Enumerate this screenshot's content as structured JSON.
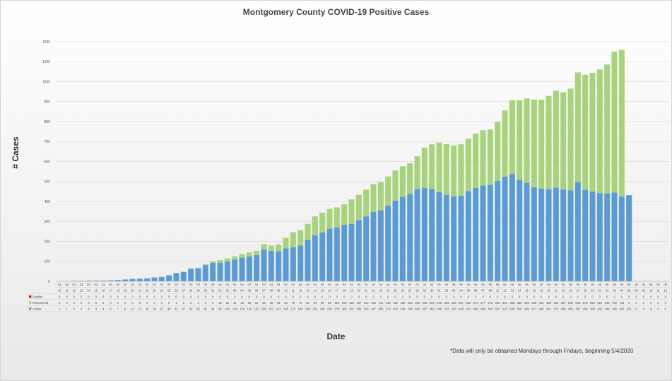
{
  "colors": {
    "deaths": "#dd1111",
    "recovered": "#a6d37c",
    "active": "#5b9bd5",
    "gridline": "#d0d0d0",
    "axis": "#a0a0a0"
  },
  "chart_data": {
    "type": "bar",
    "stacked": true,
    "title": "Montgomery County COVID-19 Positive Cases",
    "xlabel": "Date",
    "ylabel": "# Cases",
    "ylim": [
      0,
      1200
    ],
    "yticks": [
      0,
      100,
      200,
      300,
      400,
      500,
      600,
      700,
      800,
      900,
      1000,
      1100,
      1200
    ],
    "grid": true,
    "legend": "data-table-left",
    "categories": [
      [
        "03",
        "10"
      ],
      [
        "03",
        "11"
      ],
      [
        "03",
        "12"
      ],
      [
        "03",
        "13"
      ],
      [
        "03",
        "14"
      ],
      [
        "03",
        "15"
      ],
      [
        "03",
        "16"
      ],
      [
        "03",
        "17"
      ],
      [
        "03",
        "18"
      ],
      [
        "03",
        "19"
      ],
      [
        "03",
        "20"
      ],
      [
        "03",
        "21"
      ],
      [
        "03",
        "22"
      ],
      [
        "03",
        "23"
      ],
      [
        "03",
        "24"
      ],
      [
        "03",
        "25"
      ],
      [
        "03",
        "26"
      ],
      [
        "03",
        "27"
      ],
      [
        "03",
        "28"
      ],
      [
        "03",
        "29"
      ],
      [
        "03",
        "30"
      ],
      [
        "03",
        "31"
      ],
      [
        "04",
        "01"
      ],
      [
        "04",
        "02"
      ],
      [
        "04",
        "03"
      ],
      [
        "04",
        "04"
      ],
      [
        "04",
        "05"
      ],
      [
        "04",
        "06"
      ],
      [
        "04",
        "07"
      ],
      [
        "04",
        "08"
      ],
      [
        "04",
        "09"
      ],
      [
        "04",
        "10"
      ],
      [
        "04",
        "11"
      ],
      [
        "04",
        "12"
      ],
      [
        "04",
        "13"
      ],
      [
        "04",
        "14"
      ],
      [
        "04",
        "15"
      ],
      [
        "04",
        "16"
      ],
      [
        "04",
        "17"
      ],
      [
        "04",
        "18"
      ],
      [
        "04",
        "19"
      ],
      [
        "04",
        "20"
      ],
      [
        "04",
        "21"
      ],
      [
        "04",
        "22"
      ],
      [
        "04",
        "23"
      ],
      [
        "04",
        "24"
      ],
      [
        "04",
        "25"
      ],
      [
        "04",
        "26"
      ],
      [
        "04",
        "27"
      ],
      [
        "04",
        "28"
      ],
      [
        "04",
        "29"
      ],
      [
        "04",
        "30"
      ],
      [
        "05",
        "01"
      ],
      [
        "05",
        "02"
      ],
      [
        "05",
        "03"
      ],
      [
        "05",
        "04"
      ],
      [
        "05",
        "05"
      ],
      [
        "05",
        "06"
      ],
      [
        "05",
        "07"
      ],
      [
        "05",
        "08"
      ],
      [
        "05",
        "11"
      ],
      [
        "05",
        "12"
      ],
      [
        "05",
        "13"
      ],
      [
        "05",
        "14"
      ],
      [
        "05",
        "15"
      ],
      [
        "05",
        "18"
      ],
      [
        "05",
        "19"
      ],
      [
        "05",
        "20"
      ],
      [
        "05",
        "21"
      ],
      [
        "05",
        "22"
      ],
      [
        "05",
        "26"
      ],
      [
        "05",
        "27"
      ],
      [
        "05",
        "28"
      ],
      [
        "05",
        "29"
      ],
      [
        "06",
        "01"
      ],
      [
        "06",
        "02"
      ],
      [
        "06",
        "03"
      ],
      [
        "06",
        "04"
      ],
      [
        "06",
        "05"
      ],
      [
        "06",
        "08"
      ],
      [
        "06",
        "09"
      ],
      [
        "06",
        "10"
      ],
      [
        "06",
        "11"
      ],
      [
        "06",
        "12"
      ]
    ],
    "series": [
      {
        "name": "Deaths",
        "values": [
          0,
          0,
          0,
          0,
          0,
          0,
          0,
          0,
          0,
          0,
          0,
          0,
          0,
          0,
          0,
          0,
          0,
          0,
          0,
          0,
          0,
          0,
          0,
          0,
          0,
          0,
          0,
          0,
          0,
          0,
          0,
          0,
          0,
          0,
          0,
          0,
          0,
          0,
          0,
          0,
          0,
          0,
          0,
          0,
          0,
          0,
          0,
          0,
          0,
          0,
          0,
          0,
          0,
          0,
          0,
          0,
          0,
          0,
          0,
          0,
          0,
          0,
          0,
          0,
          0,
          0,
          0,
          0,
          0,
          0,
          0,
          0,
          0,
          0,
          0,
          0,
          0,
          0,
          0,
          0,
          0,
          0,
          0,
          0
        ]
      },
      {
        "name": "Recovered",
        "values": [
          0,
          0,
          0,
          0,
          0,
          0,
          0,
          0,
          0,
          0,
          0,
          0,
          0,
          0,
          0,
          0,
          1,
          1,
          2,
          3,
          5,
          8,
          13,
          15,
          16,
          18,
          20,
          21,
          26,
          26,
          33,
          53,
          76,
          76,
          80,
          94,
          99,
          99,
          100,
          103,
          123,
          127,
          134,
          140,
          141,
          146,
          152,
          152,
          153,
          163,
          203,
          224,
          249,
          254,
          255,
          257,
          262,
          272,
          277,
          278,
          295,
          331,
          368,
          398,
          424,
          439,
          444,
          468,
          484,
          487,
          509,
          549,
          576,
          594,
          619,
          646,
          705,
          734,
          0,
          0,
          0,
          0,
          0,
          0
        ]
      },
      {
        "name": "Active",
        "values": [
          1,
          1,
          3,
          3,
          4,
          4,
          4,
          5,
          7,
          9,
          12,
          13,
          15,
          19,
          22,
          30,
          41,
          47,
          63,
          65,
          81,
          93,
          93,
          100,
          109,
          119,
          125,
          132,
          160,
          153,
          151,
          165,
          170,
          180,
          208,
          231,
          245,
          264,
          270,
          283,
          287,
          306,
          325,
          347,
          356,
          379,
          404,
          424,
          438,
          463,
          467,
          462,
          446,
          433,
          425,
          429,
          452,
          468,
          480,
          483,
          503,
          525,
          539,
          509,
          492,
          471,
          465,
          461,
          470,
          460,
          456,
          497,
          458,
          450,
          442,
          440,
          445,
          425,
          431,
          0,
          0,
          0,
          0,
          0
        ]
      }
    ],
    "annotations": [
      "*Data will only be obtained Mondays through Fridays, beginning 5/4/2020"
    ]
  },
  "legend_labels": [
    "Deaths",
    "Recovered",
    "Active"
  ],
  "footnote": "*Data will only be obtained Mondays through Fridays, beginning 5/4/2020"
}
